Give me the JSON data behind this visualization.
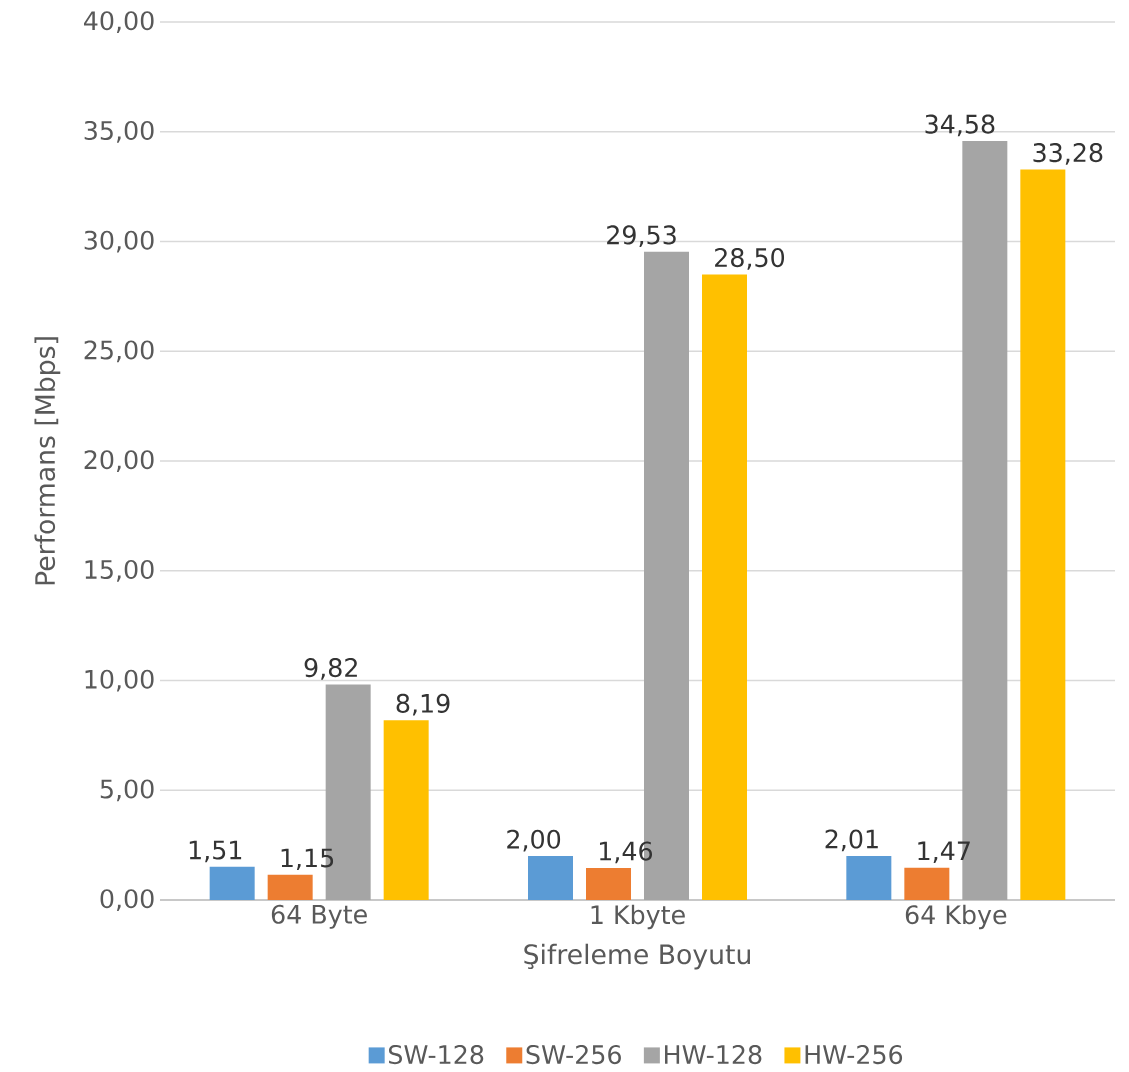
{
  "chart_data": {
    "type": "bar",
    "xlabel": "Şifreleme Boyutu",
    "ylabel": "Performans [Mbps]",
    "categories": [
      "64 Byte",
      "1 Kbyte",
      "64 Kbye"
    ],
    "series": [
      {
        "name": "SW-128",
        "color": "#5b9bd5",
        "values": [
          1.51,
          2.0,
          2.01
        ],
        "value_labels": [
          "1,51",
          "2,00",
          "2,01"
        ]
      },
      {
        "name": "SW-256",
        "color": "#ed7d31",
        "values": [
          1.15,
          1.46,
          1.47
        ],
        "value_labels": [
          "1,15",
          "1,46",
          "1,47"
        ]
      },
      {
        "name": "HW-128",
        "color": "#a5a5a5",
        "values": [
          9.82,
          29.53,
          34.58
        ],
        "value_labels": [
          "9,82",
          "29,53",
          "34,58"
        ]
      },
      {
        "name": "HW-256",
        "color": "#ffc000",
        "values": [
          8.19,
          28.5,
          33.28
        ],
        "value_labels": [
          "8,19",
          "28,50",
          "33,28"
        ]
      }
    ],
    "ylim": [
      0,
      40
    ],
    "yticks": [
      {
        "value": 0,
        "label": "0,00"
      },
      {
        "value": 5,
        "label": "5,00"
      },
      {
        "value": 10,
        "label": "10,00"
      },
      {
        "value": 15,
        "label": "15,00"
      },
      {
        "value": 20,
        "label": "20,00"
      },
      {
        "value": 25,
        "label": "25,00"
      },
      {
        "value": 30,
        "label": "30,00"
      },
      {
        "value": 35,
        "label": "35,00"
      },
      {
        "value": 40,
        "label": "40,00"
      }
    ],
    "grid": "y",
    "legend": "bottom"
  }
}
